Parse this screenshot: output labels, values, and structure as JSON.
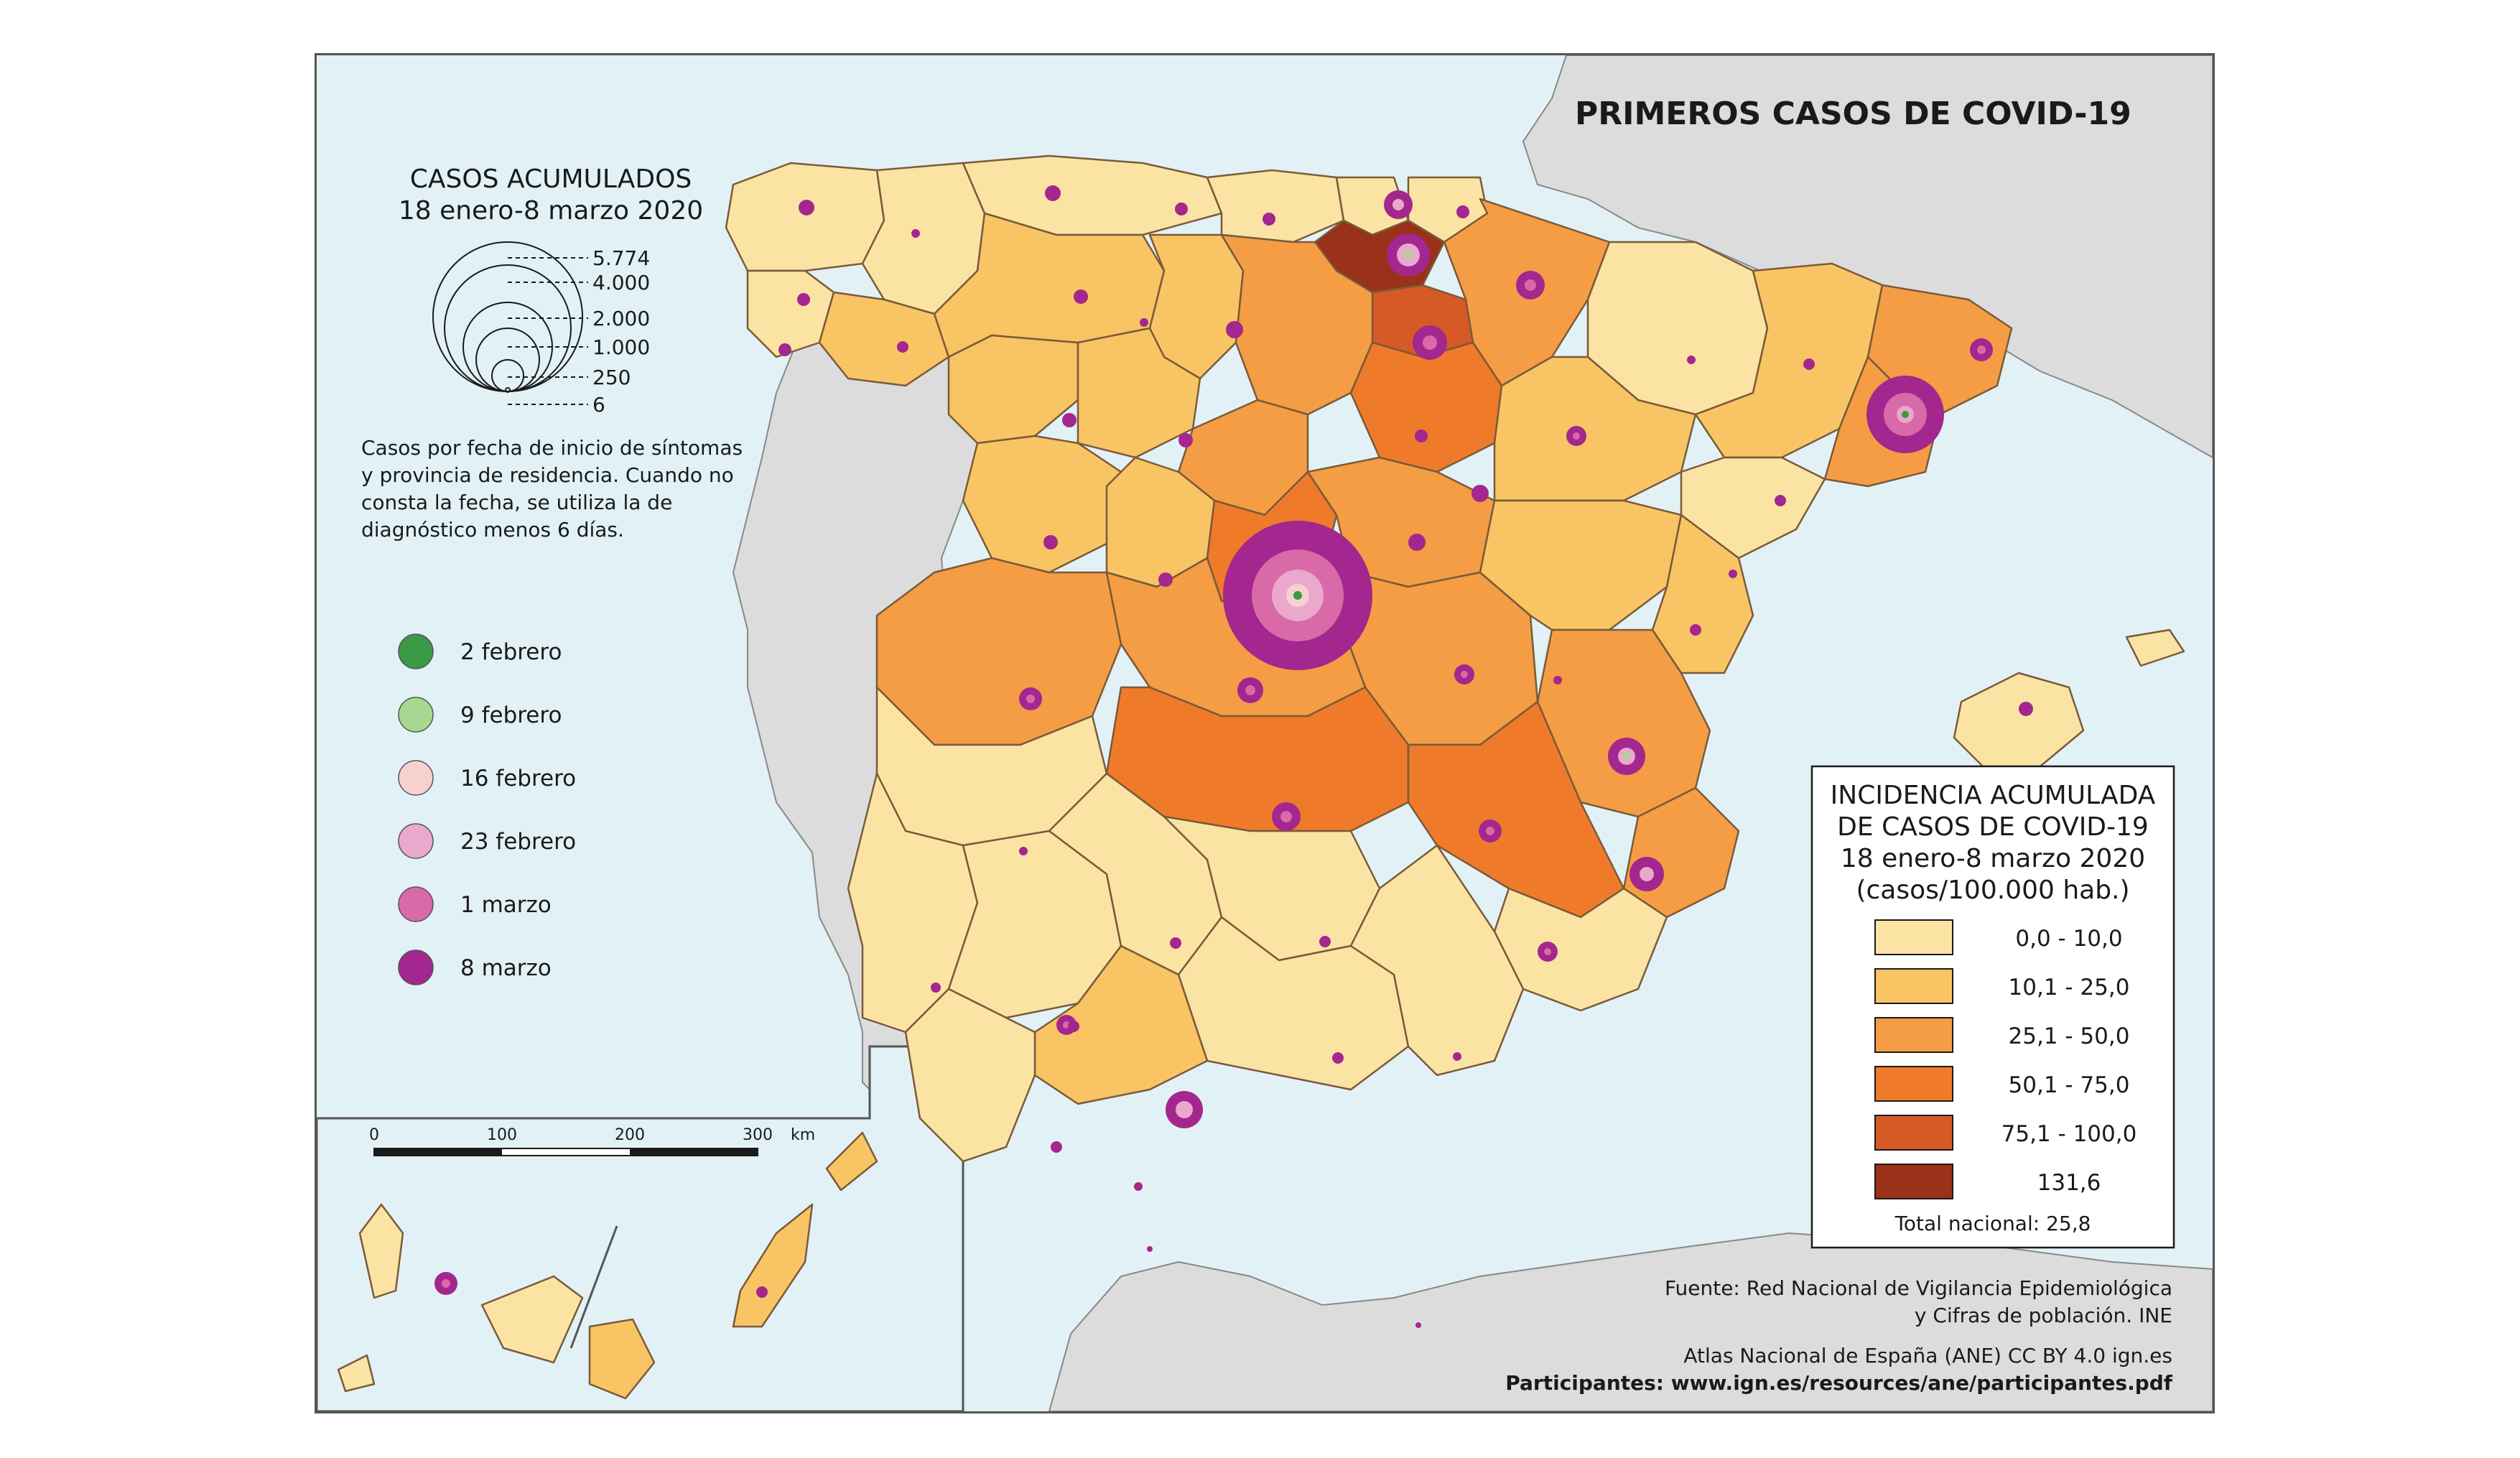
{
  "title": "PRIMEROS CASOS DE COVID-19",
  "cases_legend": {
    "heading_line1": "CASOS ACUMULADOS",
    "heading_line2": "18 enero-8 marzo 2020",
    "sizes": [
      "5.774",
      "4.000",
      "2.000",
      "1.000",
      "250",
      "6"
    ],
    "note_lines": [
      "Casos por fecha de inicio de síntomas",
      "y provincia de residencia. Cuando no",
      "consta la fecha, se utiliza la de",
      "diagnóstico menos 6 días."
    ]
  },
  "date_legend": [
    {
      "label": "2 febrero",
      "color": "#3a9a45"
    },
    {
      "label": "9 febrero",
      "color": "#a8d890"
    },
    {
      "label": "16 febrero",
      "color": "#f8d0d0"
    },
    {
      "label": "23 febrero",
      "color": "#e9a8cc"
    },
    {
      "label": "1 marzo",
      "color": "#d86aa8"
    },
    {
      "label": "8 marzo",
      "color": "#a3278e"
    }
  ],
  "incidence_legend": {
    "heading_lines": [
      "INCIDENCIA ACUMULADA",
      "DE CASOS DE COVID-19",
      "18 enero-8 marzo 2020",
      "(casos/100.000 hab.)"
    ],
    "classes": [
      {
        "label": "0,0 - 10,0",
        "color": "#fbe3a4"
      },
      {
        "label": "10,1 - 25,0",
        "color": "#f9c464"
      },
      {
        "label": "25,1 - 50,0",
        "color": "#f49d44"
      },
      {
        "label": "50,1 - 75,0",
        "color": "#ef7b2a"
      },
      {
        "label": "75,1 - 100,0",
        "color": "#d65a25"
      },
      {
        "label": "131,6",
        "color": "#9a3119"
      }
    ],
    "total": "Total nacional: 25,8"
  },
  "scale": {
    "ticks": [
      "0",
      "100",
      "200",
      "300"
    ],
    "unit": "km"
  },
  "credits": [
    "Fuente: Red Nacional de Vigilancia Epidemiológica",
    "y Cifras de población. INE",
    "Atlas Nacional de España (ANE) CC BY 4.0 ign.es",
    "Participantes: www.ign.es/resources/ane/participantes.pdf"
  ],
  "colors": {
    "sea": "#e2f1f5",
    "other_land": "#dcdcdc",
    "border": "#7a5a3a"
  }
}
